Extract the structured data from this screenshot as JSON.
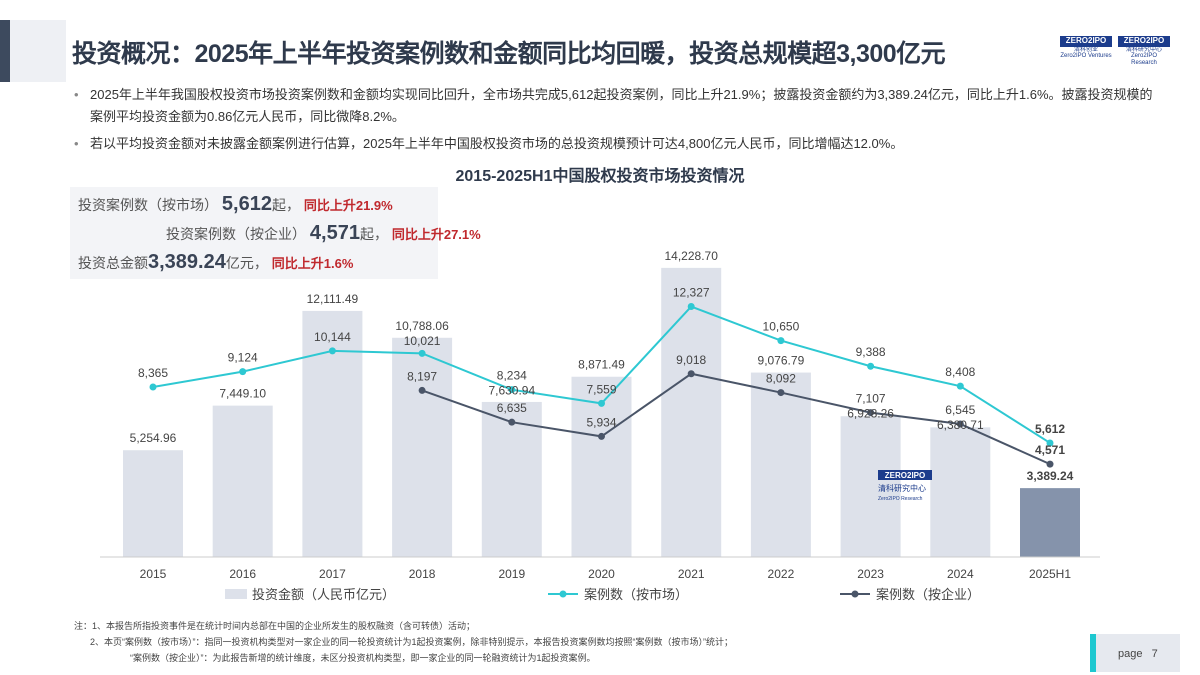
{
  "header": {
    "title": "投资概况：2025年上半年投资案例数和金额同比均回暖，投资总规模超3,300亿元",
    "logos": [
      {
        "mark": "ZERO2IPO",
        "cn": "清科创业",
        "en": "Zero2IPO Ventures"
      },
      {
        "mark": "ZERO2IPO",
        "cn": "清科研究中心",
        "en": "Zero2IPO Research"
      }
    ]
  },
  "bullets": [
    "2025年上半年我国股权投资市场投资案例数和金额均实现同比回升，全市场共完成5,612起投资案例，同比上升21.9%；披露投资金额约为3,389.24亿元，同比上升1.6%。披露投资规模的案例平均投资金额为0.86亿元人民币，同比微降8.2%。",
    "若以平均投资金额对未披露金额案例进行估算，2025年上半年中国股权投资市场的总投资规模预计可达4,800亿元人民币，同比增幅达12.0%。"
  ],
  "summary": {
    "r1": {
      "label": "投资案例数（按市场）",
      "value": "5,612",
      "unit": "起，",
      "change": "同比上升21.9%"
    },
    "r2": {
      "label": "投资案例数（按企业）",
      "value": "4,571",
      "unit": "起，",
      "change": "同比上升27.1%"
    },
    "r3": {
      "label": "投资总金额",
      "value": "3,389.24",
      "unit": "亿元，",
      "change": "同比上升1.6%"
    }
  },
  "chart_data": {
    "type": "bar+line",
    "title": "2015-2025H1中国股权投资市场投资情况",
    "categories": [
      "2015",
      "2016",
      "2017",
      "2018",
      "2019",
      "2020",
      "2021",
      "2022",
      "2023",
      "2024",
      "2025H1"
    ],
    "series": [
      {
        "name": "投资金额（人民币亿元）",
        "type": "bar",
        "values": [
          5254.96,
          7449.1,
          12111.49,
          10788.06,
          7630.94,
          8871.49,
          14228.7,
          9076.79,
          6928.26,
          6380.71,
          3389.24
        ],
        "labels": [
          "5,254.96",
          "7,449.10",
          "12,111.49",
          "10,788.06",
          "7,630.94",
          "8,871.49",
          "14,228.70",
          "9,076.79",
          "6,928.26",
          "6,380.71",
          "3,389.24"
        ]
      },
      {
        "name": "案例数（按市场）",
        "type": "line",
        "values": [
          8365,
          9124,
          10144,
          10021,
          8234,
          7559,
          12327,
          10650,
          9388,
          8408,
          5612
        ],
        "labels": [
          "8,365",
          "9,124",
          "10,144",
          "10,021",
          "8,234",
          "7,559",
          "12,327",
          "10,650",
          "9,388",
          "8,408",
          "5,612"
        ]
      },
      {
        "name": "案例数（按企业）",
        "type": "line",
        "values": [
          null,
          null,
          null,
          8197,
          6635,
          5934,
          9018,
          8092,
          7107,
          6545,
          4571
        ],
        "labels": [
          "",
          "",
          "",
          "8,197",
          "6,635",
          "5,934",
          "9,018",
          "8,092",
          "7,107",
          "6,545",
          "4,571"
        ]
      }
    ],
    "colors": {
      "bar": "#dde1ea",
      "bar_highlight": "#8593ab",
      "market": "#2ec8d2",
      "company": "#4a5568"
    },
    "grid": false
  },
  "watermark": {
    "mark": "ZERO2IPO",
    "cn": "清科研究中心",
    "en": "Zero2IPO Research"
  },
  "notes": [
    "注：1、本报告所指投资事件是在统计时间内总部在中国的企业所发生的股权融资（含可转债）活动；",
    "2、本页“案例数（按市场）”：指同一投资机构类型对一家企业的同一轮投资统计为1起投资案例，除非特别提示，本报告投资案例数均按照“案例数（按市场）”统计；",
    "“案例数（按企业）”：为此报告新增的统计维度，未区分投资机构类型，即一家企业的同一轮融资统计为1起投资案例。"
  ],
  "page": {
    "label": "page",
    "number": "7"
  }
}
